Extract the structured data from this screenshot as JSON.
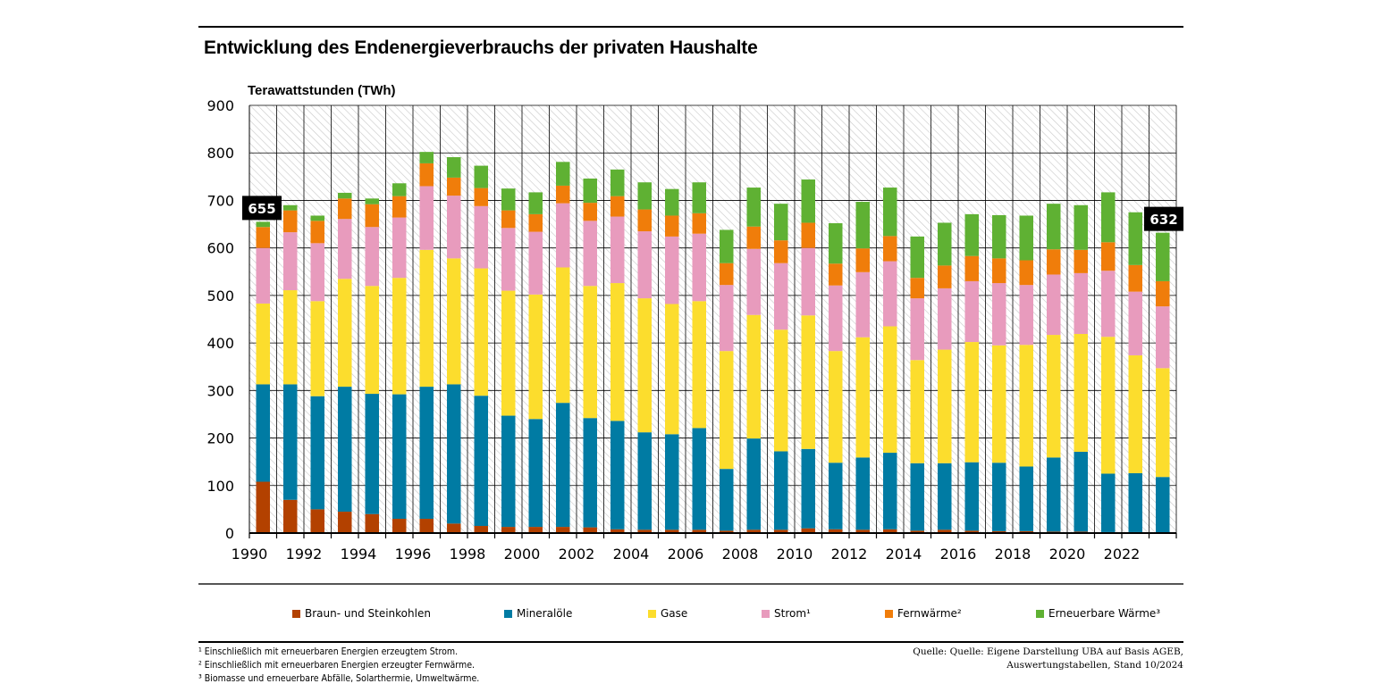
{
  "title": "Entwicklung des Endenergieverbrauchs der privaten Haushalte",
  "chart_data": {
    "type": "bar",
    "stacked": true,
    "ylabel": "Terawattstunden (TWh)",
    "ylim": [
      0,
      900
    ],
    "yticks": [
      0,
      100,
      200,
      300,
      400,
      500,
      600,
      700,
      800,
      900
    ],
    "x_tick_labels": [
      "1990",
      "1992",
      "1994",
      "1996",
      "1998",
      "2000",
      "2002",
      "2004",
      "2006",
      "2008",
      "2010",
      "2012",
      "2014",
      "2016",
      "2018",
      "2020",
      "2022"
    ],
    "categories": [
      1990,
      1991,
      1992,
      1993,
      1994,
      1995,
      1996,
      1997,
      1998,
      1999,
      2000,
      2001,
      2002,
      2003,
      2004,
      2005,
      2006,
      2007,
      2008,
      2009,
      2010,
      2011,
      2012,
      2013,
      2014,
      2015,
      2016,
      2017,
      2018,
      2019,
      2020,
      2021,
      2022,
      2023
    ],
    "grid": true,
    "legend_position": "bottom",
    "series": [
      {
        "name": "Braun- und Steinkohlen",
        "color": "#b34100",
        "values": [
          108,
          70,
          50,
          45,
          40,
          30,
          30,
          20,
          15,
          13,
          13,
          13,
          12,
          8,
          7,
          7,
          7,
          5,
          7,
          7,
          10,
          8,
          7,
          8,
          5,
          7,
          5,
          4,
          4,
          3,
          3,
          2,
          2,
          1
        ]
      },
      {
        "name": "Mineralöle",
        "color": "#007ba3",
        "values": [
          205,
          243,
          238,
          263,
          253,
          262,
          278,
          293,
          274,
          234,
          227,
          261,
          230,
          228,
          205,
          201,
          214,
          130,
          192,
          165,
          167,
          140,
          152,
          161,
          142,
          140,
          144,
          144,
          136,
          156,
          168,
          123,
          124,
          117
        ]
      },
      {
        "name": "Gase",
        "color": "#fcdd2d",
        "values": [
          170,
          198,
          200,
          227,
          227,
          245,
          288,
          265,
          268,
          263,
          262,
          285,
          278,
          290,
          282,
          274,
          267,
          248,
          260,
          256,
          281,
          235,
          253,
          266,
          217,
          239,
          253,
          247,
          256,
          258,
          248,
          288,
          248,
          229
        ]
      },
      {
        "name": "Strom¹",
        "color": "#e89bbd",
        "values": [
          117,
          122,
          122,
          126,
          124,
          127,
          134,
          132,
          131,
          132,
          132,
          135,
          137,
          140,
          141,
          142,
          142,
          139,
          139,
          140,
          142,
          138,
          137,
          137,
          130,
          129,
          128,
          131,
          126,
          127,
          128,
          139,
          134,
          130
        ]
      },
      {
        "name": "Fernwärme²",
        "color": "#f07d0a",
        "values": [
          44,
          46,
          47,
          43,
          48,
          45,
          48,
          38,
          38,
          37,
          37,
          37,
          38,
          43,
          46,
          44,
          43,
          46,
          47,
          48,
          53,
          46,
          50,
          53,
          43,
          48,
          53,
          52,
          52,
          53,
          49,
          60,
          56,
          53
        ]
      },
      {
        "name": "Erneuerbare Wärme³",
        "color": "#5fb133",
        "values": [
          11,
          11,
          11,
          12,
          12,
          27,
          24,
          43,
          47,
          46,
          46,
          50,
          51,
          56,
          57,
          56,
          65,
          70,
          82,
          77,
          91,
          85,
          98,
          102,
          87,
          90,
          88,
          91,
          94,
          96,
          94,
          105,
          111,
          102
        ]
      }
    ],
    "annotations": [
      {
        "category": 1990,
        "label": "655"
      },
      {
        "category": 2023,
        "label": "632"
      }
    ]
  },
  "legend": [
    {
      "label": "Braun- und Steinkohlen",
      "color": "#b34100"
    },
    {
      "label": "Mineralöle",
      "color": "#007ba3"
    },
    {
      "label": "Gase",
      "color": "#fcdd2d"
    },
    {
      "label": "Strom¹",
      "color": "#e89bbd"
    },
    {
      "label": "Fernwärme²",
      "color": "#f07d0a"
    },
    {
      "label": "Erneuerbare Wärme³",
      "color": "#5fb133"
    }
  ],
  "footnotes": [
    "¹ Einschließlich mit erneuerbaren Energien erzeugtem Strom.",
    "² Einschließlich mit erneuerbaren Energien erzeugter Fernwärme.",
    "³ Biomasse und erneuerbare Abfälle, Solarthermie, Umweltwärme."
  ],
  "source": {
    "line1": "Quelle: Quelle: Eigene Darstellung UBA auf Basis AGEB,",
    "line2": "Auswertungstabellen, Stand 10/2024"
  }
}
